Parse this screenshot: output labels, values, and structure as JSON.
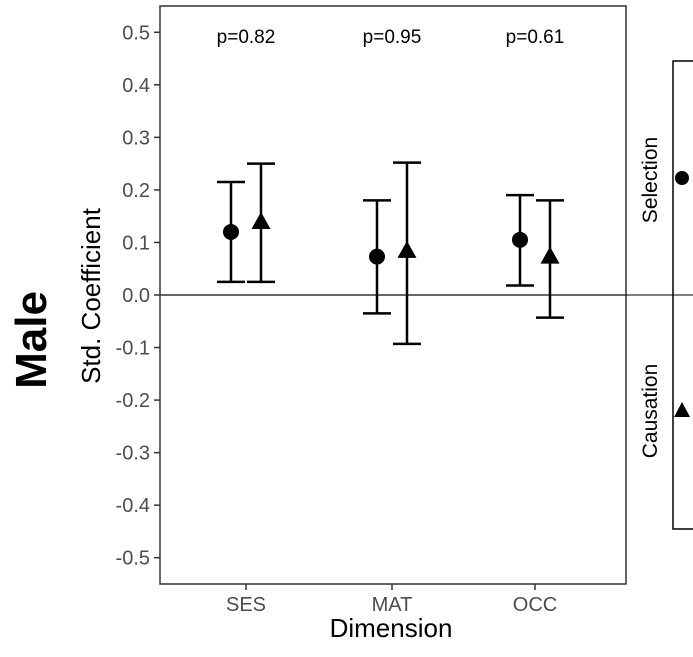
{
  "chart_data": {
    "type": "scatter",
    "facet_label": "Male",
    "xlabel": "Dimension",
    "ylabel": "Std. Coefficient",
    "categories": [
      "SES",
      "MAT",
      "OCC"
    ],
    "ylim": [
      -0.55,
      0.55
    ],
    "yticks": [
      0.5,
      0.4,
      0.3,
      0.2,
      0.1,
      0.0,
      -0.1,
      -0.2,
      -0.3,
      -0.4,
      -0.5
    ],
    "ytick_labels": [
      "0.5",
      "0.4",
      "0.3",
      "0.2",
      "0.1",
      "0.0",
      "-0.1",
      "-0.2",
      "-0.3",
      "-0.4",
      "-0.5"
    ],
    "reference_line": 0.0,
    "grid": false,
    "annotations": [
      "p=0.82",
      "p=0.95",
      "p=0.61"
    ],
    "series": [
      {
        "name": "Selection",
        "marker": "circle",
        "values": [
          0.12,
          0.073,
          0.105
        ],
        "ci_low": [
          0.025,
          -0.035,
          0.018
        ],
        "ci_high": [
          0.215,
          0.18,
          0.19
        ]
      },
      {
        "name": "Causation",
        "marker": "triangle",
        "values": [
          0.138,
          0.083,
          0.072
        ],
        "ci_low": [
          0.025,
          -0.093,
          -0.043
        ],
        "ci_high": [
          0.25,
          0.252,
          0.18
        ]
      }
    ],
    "legend_position": "right",
    "colors": {
      "mark": "#000000",
      "panel_border": "#333333",
      "tick_text": "#4d4d4d"
    }
  }
}
